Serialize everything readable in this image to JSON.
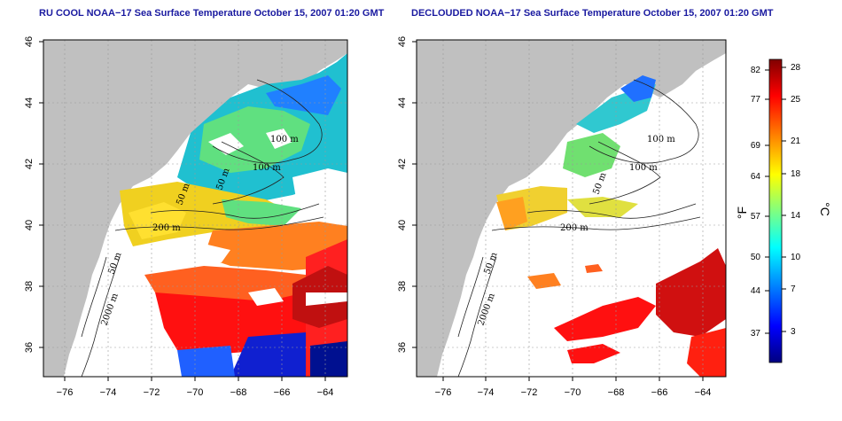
{
  "left_map": {
    "title": "RU COOL NOAA−17 Sea Surface Temperature October 15, 2007 01:20 GMT",
    "contours": [
      "100 m",
      "100 m",
      "50 m",
      "50 m",
      "200 m",
      "50 m",
      "2000 m"
    ]
  },
  "right_map": {
    "title": "DECLOUDED NOAA−17 Sea Surface Temperature October 15, 2007 01:20 GMT",
    "contours": [
      "100 m",
      "100 m",
      "50 m",
      "200 m",
      "50 m",
      "2000 m"
    ]
  },
  "axes": {
    "lon_ticks": [
      "−76",
      "−74",
      "−72",
      "−70",
      "−68",
      "−66",
      "−64"
    ],
    "lat_ticks": [
      "46",
      "44",
      "42",
      "40",
      "38",
      "36"
    ]
  },
  "colorbar": {
    "f_ticks": [
      "82",
      "77",
      "69",
      "64",
      "57",
      "50",
      "44",
      "37"
    ],
    "c_ticks": [
      "28",
      "25",
      "21",
      "18",
      "14",
      "10",
      "7",
      "3"
    ],
    "f_label": "°F",
    "c_label": "°C",
    "colors": [
      "#000080",
      "#0000ff",
      "#0080ff",
      "#00ffff",
      "#80ff80",
      "#ffff00",
      "#ff8000",
      "#ff0000",
      "#800000"
    ]
  },
  "colors": {
    "land": "#c0c0c0",
    "title": "#1a1aa0",
    "cloud": "#ffffff"
  }
}
